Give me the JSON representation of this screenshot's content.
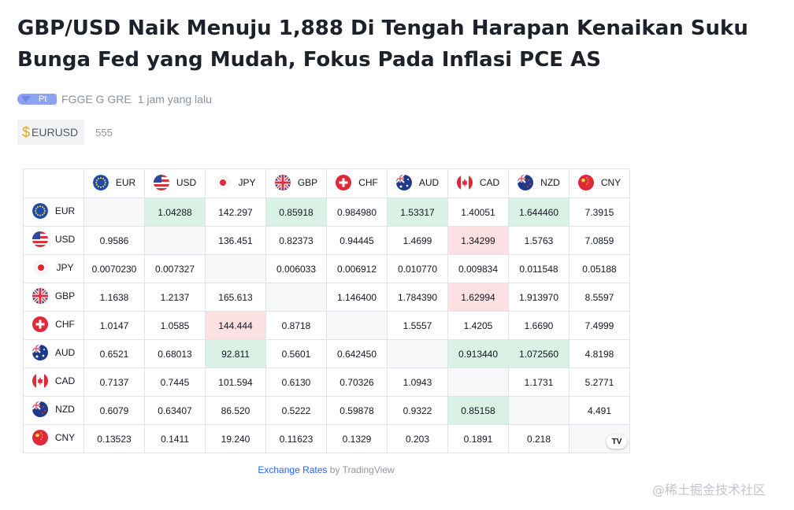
{
  "article": {
    "title": "GBP/USD Naik Menuju 1,888 Di Tengah Harapan Kenaikan Suku Bunga Fed yang Mudah, Fokus Pada Inflasi PCE AS",
    "author_level": "Pt",
    "author": "FGGE G GRE",
    "time": "1 jam yang lalu",
    "tag": {
      "icon": "dollar-icon",
      "label": "EURUSD"
    },
    "tag_count": "555"
  },
  "rates": {
    "currencies": [
      {
        "code": "EUR",
        "flag": "eu-flag-icon"
      },
      {
        "code": "USD",
        "flag": "us-flag-icon"
      },
      {
        "code": "JPY",
        "flag": "jp-flag-icon"
      },
      {
        "code": "GBP",
        "flag": "gb-flag-icon"
      },
      {
        "code": "CHF",
        "flag": "ch-flag-icon"
      },
      {
        "code": "AUD",
        "flag": "au-flag-icon"
      },
      {
        "code": "CAD",
        "flag": "ca-flag-icon"
      },
      {
        "code": "NZD",
        "flag": "nz-flag-icon"
      },
      {
        "code": "CNY",
        "flag": "cn-flag-icon"
      }
    ],
    "rows": [
      [
        "",
        "1.04288",
        "142.297",
        "0.85918",
        "0.984980",
        "1.53317",
        "1.40051",
        "1.644460",
        "7.3915"
      ],
      [
        "0.9586",
        "",
        "136.451",
        "0.82373",
        "0.94445",
        "1.4699",
        "1.34299",
        "1.5763",
        "7.0859"
      ],
      [
        "0.0070230",
        "0.007327",
        "",
        "0.006033",
        "0.006912",
        "0.010770",
        "0.009834",
        "0.011548",
        "0.05188"
      ],
      [
        "1.1638",
        "1.2137",
        "165.613",
        "",
        "1.146400",
        "1.784390",
        "1.62994",
        "1.913970",
        "8.5597"
      ],
      [
        "1.0147",
        "1.0585",
        "144.444",
        "0.8718",
        "",
        "1.5557",
        "1.4205",
        "1.6690",
        "7.4999"
      ],
      [
        "0.6521",
        "0.68013",
        "92.811",
        "0.5601",
        "0.642450",
        "",
        "0.913440",
        "1.072560",
        "4.8198"
      ],
      [
        "0.7137",
        "0.7445",
        "101.594",
        "0.6130",
        "0.70326",
        "1.0943",
        "",
        "1.1731",
        "5.2771"
      ],
      [
        "0.6079",
        "0.63407",
        "86.520",
        "0.5222",
        "0.59878",
        "0.9322",
        "0.85158",
        "",
        "4.491"
      ],
      [
        "0.13523",
        "0.1411",
        "19.240",
        "0.11623",
        "0.1329",
        "0.203",
        "0.1891",
        "0.218",
        ""
      ]
    ],
    "highlights": [
      [
        "",
        "up",
        "",
        "up",
        "",
        "up",
        "",
        "up",
        ""
      ],
      [
        "",
        "",
        "",
        "",
        "",
        "",
        "down",
        "",
        ""
      ],
      [
        "",
        "",
        "",
        "",
        "",
        "",
        "",
        "",
        ""
      ],
      [
        "",
        "",
        "",
        "",
        "",
        "",
        "down",
        "",
        ""
      ],
      [
        "",
        "",
        "down",
        "",
        "",
        "",
        "",
        "",
        ""
      ],
      [
        "",
        "",
        "up",
        "",
        "",
        "",
        "up",
        "up",
        ""
      ],
      [
        "",
        "",
        "",
        "",
        "",
        "",
        "",
        "",
        ""
      ],
      [
        "",
        "",
        "",
        "",
        "",
        "",
        "up",
        "",
        ""
      ],
      [
        "",
        "",
        "",
        "",
        "",
        "",
        "",
        "",
        ""
      ]
    ],
    "colors": {
      "up_bg": "#daf1e6",
      "up_text": "#089981",
      "down_bg": "#fde0e2",
      "down_text": "#f23645"
    },
    "widget_logo": "TV",
    "footer_link": "Exchange Rates",
    "footer_by": "by TradingView"
  },
  "watermark": "@稀土掘金技术社区"
}
